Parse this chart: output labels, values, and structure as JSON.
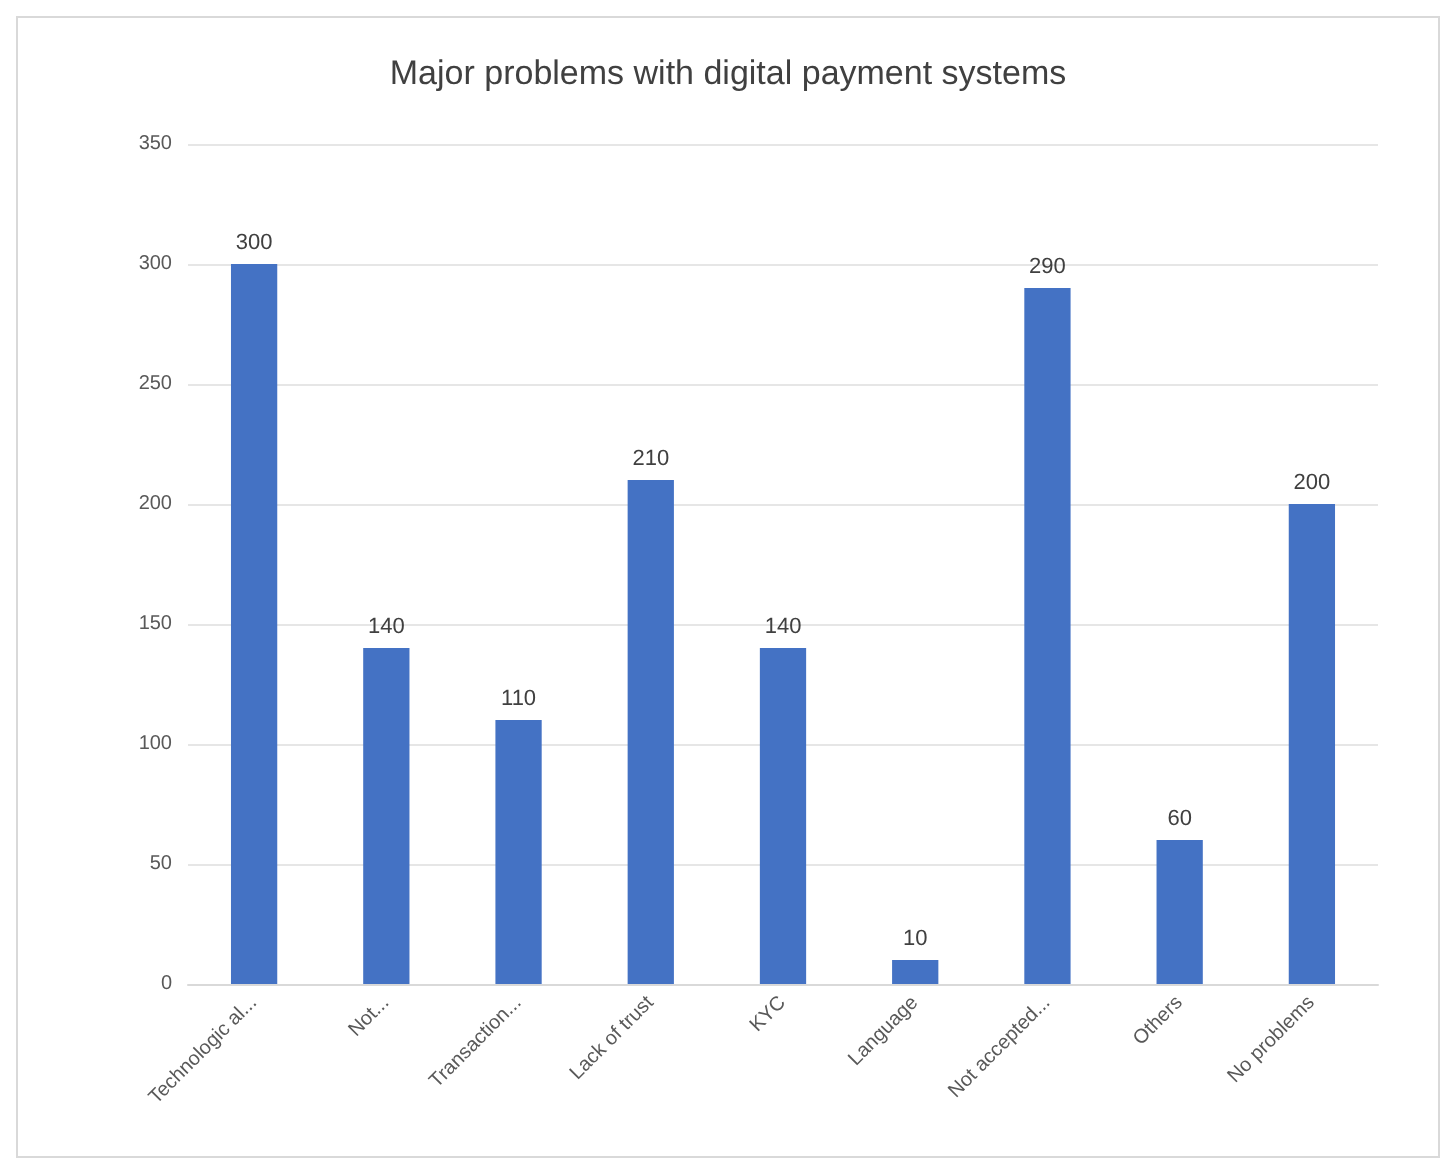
{
  "chart_data": {
    "type": "bar",
    "title": "Major problems with digital payment systems",
    "categories": [
      "Technologic al...",
      "Not...",
      "Transaction...",
      "Lack of trust",
      "KYC",
      "Language",
      "Not accepted...",
      "Others",
      "No problems"
    ],
    "values": [
      300,
      140,
      110,
      210,
      140,
      10,
      290,
      60,
      200
    ],
    "color": "#4472c4",
    "ylim": [
      0,
      350
    ],
    "yticks": [
      0,
      50,
      100,
      150,
      200,
      250,
      300,
      350
    ],
    "grid": "y",
    "data_labels": true
  }
}
